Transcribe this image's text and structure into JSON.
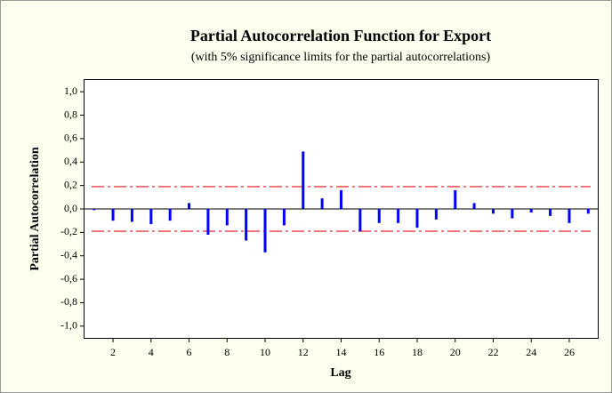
{
  "chart_data": {
    "type": "bar",
    "title": "Partial Autocorrelation Function for Export",
    "subtitle": "(with 5% significance limits for the partial autocorrelations)",
    "x_label": "Lag",
    "y_label": "Partial Autocorrelation",
    "x": [
      1,
      2,
      3,
      4,
      5,
      6,
      7,
      8,
      9,
      10,
      11,
      12,
      13,
      14,
      15,
      16,
      17,
      18,
      19,
      20,
      21,
      22,
      23,
      24,
      25,
      26,
      27
    ],
    "values": [
      -0.01,
      -0.1,
      -0.11,
      -0.13,
      -0.1,
      0.05,
      -0.22,
      -0.14,
      -0.27,
      -0.37,
      -0.14,
      0.49,
      0.09,
      0.16,
      -0.19,
      -0.12,
      -0.12,
      -0.16,
      -0.09,
      0.16,
      0.05,
      -0.04,
      -0.08,
      -0.03,
      -0.06,
      -0.12,
      -0.04
    ],
    "color": "#0000ff",
    "significance_limits": [
      0.19,
      -0.19
    ],
    "limit_color": "#e8101a",
    "xlim": [
      0.5,
      27.5
    ],
    "xticks": [
      2,
      4,
      6,
      8,
      10,
      12,
      14,
      16,
      18,
      20,
      22,
      24,
      26
    ],
    "ylim": [
      -1.1,
      1.1
    ],
    "yticks": [
      {
        "value": 1,
        "label": "1,0"
      },
      {
        "value": 0.8,
        "label": "0,8"
      },
      {
        "value": 0.6,
        "label": "0,6"
      },
      {
        "value": 0.4,
        "label": "0,4"
      },
      {
        "value": 0.2,
        "label": "0,2"
      },
      {
        "value": 0,
        "label": "0,0"
      },
      {
        "value": -0.2,
        "label": "-0,2"
      },
      {
        "value": -0.4,
        "label": "-0,4"
      },
      {
        "value": -0.6,
        "label": "-0,6"
      },
      {
        "value": -0.8,
        "label": "-0,8"
      },
      {
        "value": -1,
        "label": "-1,0"
      }
    ]
  }
}
